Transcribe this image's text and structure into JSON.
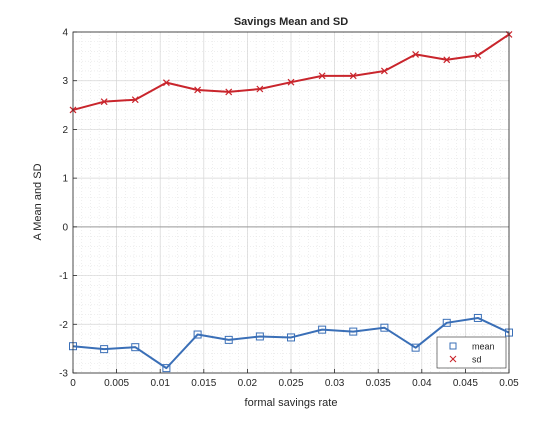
{
  "chart_data": {
    "type": "line",
    "title": "Savings Mean and SD",
    "xlabel": "formal savings rate",
    "ylabel": "A Mean and SD",
    "xlim": [
      0,
      0.05
    ],
    "ylim": [
      -3,
      4
    ],
    "x_ticks": [
      "0",
      "0.005",
      "0.01",
      "0.015",
      "0.02",
      "0.025",
      "0.03",
      "0.035",
      "0.04",
      "0.045",
      "0.05"
    ],
    "y_ticks": [
      "-3",
      "-2",
      "-1",
      "0",
      "1",
      "2",
      "3",
      "4"
    ],
    "grid": "major and minor (dotted)",
    "legend_placement": "bottom-right",
    "zero_line": true,
    "x": [
      0,
      0.00357,
      0.00714,
      0.01071,
      0.01429,
      0.01786,
      0.02143,
      0.025,
      0.02857,
      0.03214,
      0.03571,
      0.03929,
      0.04286,
      0.04643,
      0.05
    ],
    "series": [
      {
        "name": "mean",
        "marker": "square",
        "color": "#3a6fb7",
        "values": [
          -2.45,
          -2.51,
          -2.47,
          -2.9,
          -2.21,
          -2.32,
          -2.25,
          -2.27,
          -2.11,
          -2.15,
          -2.07,
          -2.48,
          -1.97,
          -1.87,
          -2.17
        ]
      },
      {
        "name": "sd",
        "marker": "x",
        "color": "#c9252c",
        "values": [
          2.4,
          2.57,
          2.61,
          2.96,
          2.81,
          2.77,
          2.83,
          2.97,
          3.1,
          3.1,
          3.2,
          3.54,
          3.43,
          3.52,
          3.95
        ]
      }
    ]
  }
}
